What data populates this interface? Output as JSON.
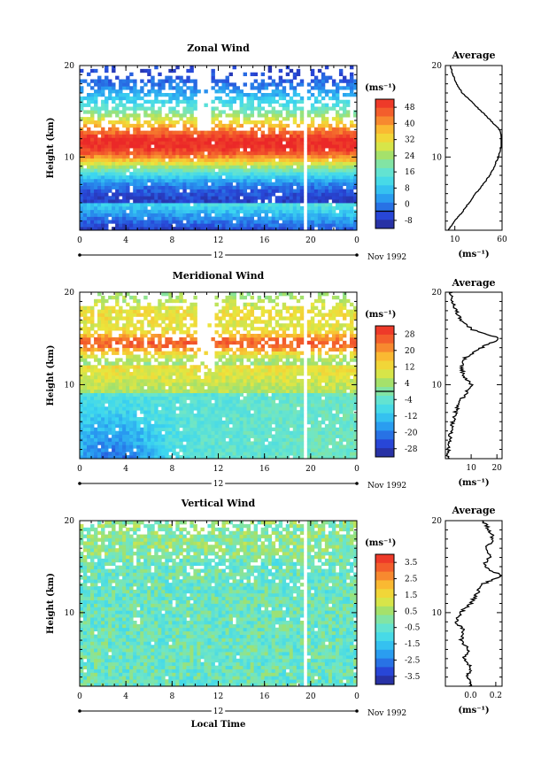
{
  "chart_data": [
    {
      "type": "heatmap",
      "title": "Zonal Wind",
      "ylabel": "Height (km)",
      "xlabel": "",
      "x_ticks": [
        "0",
        "4",
        "8",
        "12",
        "16",
        "20",
        "0"
      ],
      "y_ticks": [
        "20",
        "10"
      ],
      "xlim": [
        0,
        24
      ],
      "ylim": [
        2,
        20
      ],
      "date_label": "12",
      "date_suffix": "Nov 1992",
      "colorbar_unit": "(ms⁻¹)",
      "colorbar_ticks": [
        "48",
        "40",
        "32",
        "24",
        "16",
        "8",
        "0",
        "-8"
      ],
      "colorbar_range": [
        -8,
        52
      ],
      "colorbar_contour": 0,
      "average": {
        "title": "Average",
        "x_ticks": [
          "10",
          "60"
        ],
        "xlim": [
          0,
          60
        ],
        "y_ticks": [
          "20",
          "10"
        ],
        "xlabel": "(ms⁻¹)",
        "profile": {
          "height": [
            2,
            3,
            4,
            5,
            6,
            7,
            8,
            9,
            10,
            11,
            12,
            13,
            14,
            15,
            16,
            17,
            18,
            19,
            20
          ],
          "value": [
            3,
            10,
            18,
            25,
            32,
            40,
            47,
            52,
            56,
            59,
            60,
            57,
            48,
            38,
            28,
            18,
            12,
            8,
            5
          ]
        }
      }
    },
    {
      "type": "heatmap",
      "title": "Meridional Wind",
      "ylabel": "Height (km)",
      "xlabel": "",
      "x_ticks": [
        "0",
        "4",
        "8",
        "12",
        "16",
        "20",
        "0"
      ],
      "y_ticks": [
        "20",
        "10"
      ],
      "xlim": [
        0,
        24
      ],
      "ylim": [
        2,
        20
      ],
      "date_label": "12",
      "date_suffix": "Nov 1992",
      "colorbar_unit": "(ms⁻¹)",
      "colorbar_ticks": [
        "28",
        "20",
        "12",
        "4",
        "-4",
        "-12",
        "-20",
        "-28"
      ],
      "colorbar_range": [
        -28,
        28
      ],
      "colorbar_contour": 0,
      "average": {
        "title": "Average",
        "x_ticks": [
          "10",
          "20"
        ],
        "xlim": [
          0,
          22
        ],
        "y_ticks": [
          "20",
          "10"
        ],
        "xlabel": "(ms⁻¹)",
        "profile": {
          "height": [
            2,
            3,
            4,
            5,
            6,
            7,
            8,
            9,
            10,
            11,
            12,
            13,
            14,
            15,
            16,
            17,
            18,
            19,
            20
          ],
          "value": [
            1,
            1,
            2,
            2,
            3,
            4,
            5,
            8,
            10,
            7,
            6,
            8,
            14,
            21,
            10,
            6,
            4,
            3,
            2
          ]
        }
      }
    },
    {
      "type": "heatmap",
      "title": "Vertical Wind",
      "ylabel": "Height (km)",
      "xlabel": "Local Time",
      "x_ticks": [
        "0",
        "4",
        "8",
        "12",
        "16",
        "20",
        "0"
      ],
      "y_ticks": [
        "20",
        "10"
      ],
      "xlim": [
        0,
        24
      ],
      "ylim": [
        2,
        20
      ],
      "date_label": "12",
      "date_suffix": "Nov 1992",
      "colorbar_unit": "(ms⁻¹)",
      "colorbar_ticks": [
        "3.5",
        "2.5",
        "1.5",
        "0.5",
        "-0.5",
        "-1.5",
        "-2.5",
        "-3.5"
      ],
      "colorbar_range": [
        -3.5,
        3.5
      ],
      "average": {
        "title": "Average",
        "x_ticks": [
          "0.0",
          "0.2"
        ],
        "xlim": [
          -0.2,
          0.25
        ],
        "y_ticks": [
          "20",
          "10"
        ],
        "xlabel": "(ms⁻¹)",
        "profile": {
          "height": [
            2,
            3,
            4,
            5,
            6,
            7,
            8,
            9,
            10,
            11,
            12,
            13,
            14,
            15,
            16,
            17,
            18,
            19,
            20
          ],
          "value": [
            0.0,
            -0.02,
            0.0,
            -0.05,
            -0.02,
            -0.08,
            -0.05,
            -0.12,
            -0.08,
            0.0,
            0.05,
            0.08,
            0.25,
            0.1,
            0.15,
            0.12,
            0.18,
            0.15,
            0.1
          ]
        }
      }
    }
  ]
}
